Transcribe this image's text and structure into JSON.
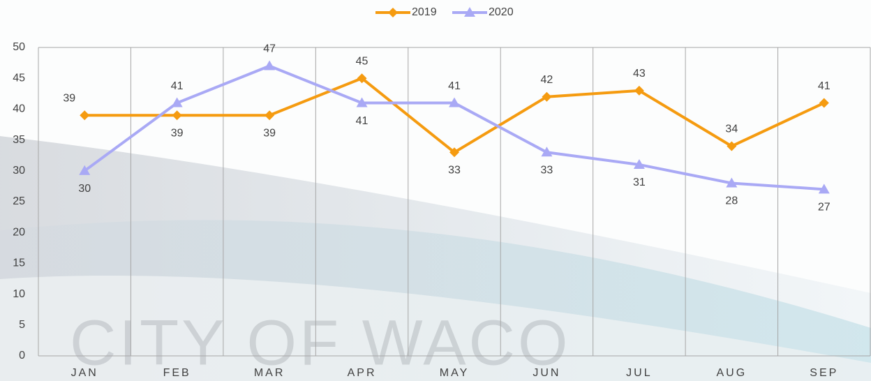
{
  "chart_data": {
    "type": "line",
    "categories": [
      "JAN",
      "FEB",
      "MAR",
      "APR",
      "MAY",
      "JUN",
      "JUL",
      "AUG",
      "SEP"
    ],
    "series": [
      {
        "name": "2019",
        "color": "#f59b10",
        "marker": "diamond",
        "values": [
          39,
          39,
          39,
          45,
          33,
          42,
          43,
          34,
          41
        ]
      },
      {
        "name": "2020",
        "color": "#a9a9f5",
        "marker": "triangle",
        "values": [
          30,
          41,
          47,
          41,
          41,
          33,
          31,
          28,
          27
        ]
      }
    ],
    "ylim": [
      0,
      50
    ],
    "yticks": [
      0,
      5,
      10,
      15,
      20,
      25,
      30,
      35,
      40,
      45,
      50
    ],
    "grid": "vertical",
    "legend": "top",
    "watermark": "CITY OF WACO"
  }
}
